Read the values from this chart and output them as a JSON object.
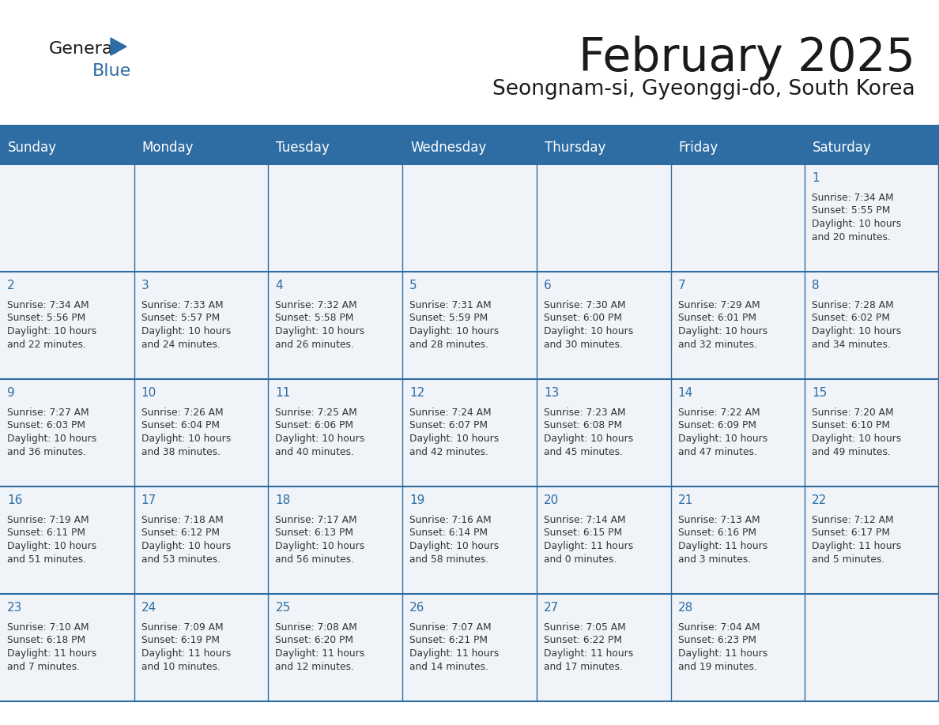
{
  "title": "February 2025",
  "subtitle": "Seongnam-si, Gyeonggi-do, South Korea",
  "days_of_week": [
    "Sunday",
    "Monday",
    "Tuesday",
    "Wednesday",
    "Thursday",
    "Friday",
    "Saturday"
  ],
  "header_bg": "#2E6DA4",
  "header_text": "#FFFFFF",
  "cell_bg": "#F0F4F8",
  "grid_line_color": "#2E6DA4",
  "day_num_color": "#2E6DA4",
  "text_color": "#333333",
  "calendar_data": [
    [
      null,
      null,
      null,
      null,
      null,
      null,
      {
        "day": 1,
        "sunrise": "7:34 AM",
        "sunset": "5:55 PM",
        "daylight": "10 hours and 20 minutes."
      }
    ],
    [
      {
        "day": 2,
        "sunrise": "7:34 AM",
        "sunset": "5:56 PM",
        "daylight": "10 hours and 22 minutes."
      },
      {
        "day": 3,
        "sunrise": "7:33 AM",
        "sunset": "5:57 PM",
        "daylight": "10 hours and 24 minutes."
      },
      {
        "day": 4,
        "sunrise": "7:32 AM",
        "sunset": "5:58 PM",
        "daylight": "10 hours and 26 minutes."
      },
      {
        "day": 5,
        "sunrise": "7:31 AM",
        "sunset": "5:59 PM",
        "daylight": "10 hours and 28 minutes."
      },
      {
        "day": 6,
        "sunrise": "7:30 AM",
        "sunset": "6:00 PM",
        "daylight": "10 hours and 30 minutes."
      },
      {
        "day": 7,
        "sunrise": "7:29 AM",
        "sunset": "6:01 PM",
        "daylight": "10 hours and 32 minutes."
      },
      {
        "day": 8,
        "sunrise": "7:28 AM",
        "sunset": "6:02 PM",
        "daylight": "10 hours and 34 minutes."
      }
    ],
    [
      {
        "day": 9,
        "sunrise": "7:27 AM",
        "sunset": "6:03 PM",
        "daylight": "10 hours and 36 minutes."
      },
      {
        "day": 10,
        "sunrise": "7:26 AM",
        "sunset": "6:04 PM",
        "daylight": "10 hours and 38 minutes."
      },
      {
        "day": 11,
        "sunrise": "7:25 AM",
        "sunset": "6:06 PM",
        "daylight": "10 hours and 40 minutes."
      },
      {
        "day": 12,
        "sunrise": "7:24 AM",
        "sunset": "6:07 PM",
        "daylight": "10 hours and 42 minutes."
      },
      {
        "day": 13,
        "sunrise": "7:23 AM",
        "sunset": "6:08 PM",
        "daylight": "10 hours and 45 minutes."
      },
      {
        "day": 14,
        "sunrise": "7:22 AM",
        "sunset": "6:09 PM",
        "daylight": "10 hours and 47 minutes."
      },
      {
        "day": 15,
        "sunrise": "7:20 AM",
        "sunset": "6:10 PM",
        "daylight": "10 hours and 49 minutes."
      }
    ],
    [
      {
        "day": 16,
        "sunrise": "7:19 AM",
        "sunset": "6:11 PM",
        "daylight": "10 hours and 51 minutes."
      },
      {
        "day": 17,
        "sunrise": "7:18 AM",
        "sunset": "6:12 PM",
        "daylight": "10 hours and 53 minutes."
      },
      {
        "day": 18,
        "sunrise": "7:17 AM",
        "sunset": "6:13 PM",
        "daylight": "10 hours and 56 minutes."
      },
      {
        "day": 19,
        "sunrise": "7:16 AM",
        "sunset": "6:14 PM",
        "daylight": "10 hours and 58 minutes."
      },
      {
        "day": 20,
        "sunrise": "7:14 AM",
        "sunset": "6:15 PM",
        "daylight": "11 hours and 0 minutes."
      },
      {
        "day": 21,
        "sunrise": "7:13 AM",
        "sunset": "6:16 PM",
        "daylight": "11 hours and 3 minutes."
      },
      {
        "day": 22,
        "sunrise": "7:12 AM",
        "sunset": "6:17 PM",
        "daylight": "11 hours and 5 minutes."
      }
    ],
    [
      {
        "day": 23,
        "sunrise": "7:10 AM",
        "sunset": "6:18 PM",
        "daylight": "11 hours and 7 minutes."
      },
      {
        "day": 24,
        "sunrise": "7:09 AM",
        "sunset": "6:19 PM",
        "daylight": "11 hours and 10 minutes."
      },
      {
        "day": 25,
        "sunrise": "7:08 AM",
        "sunset": "6:20 PM",
        "daylight": "11 hours and 12 minutes."
      },
      {
        "day": 26,
        "sunrise": "7:07 AM",
        "sunset": "6:21 PM",
        "daylight": "11 hours and 14 minutes."
      },
      {
        "day": 27,
        "sunrise": "7:05 AM",
        "sunset": "6:22 PM",
        "daylight": "11 hours and 17 minutes."
      },
      {
        "day": 28,
        "sunrise": "7:04 AM",
        "sunset": "6:23 PM",
        "daylight": "11 hours and 19 minutes."
      },
      null
    ]
  ]
}
